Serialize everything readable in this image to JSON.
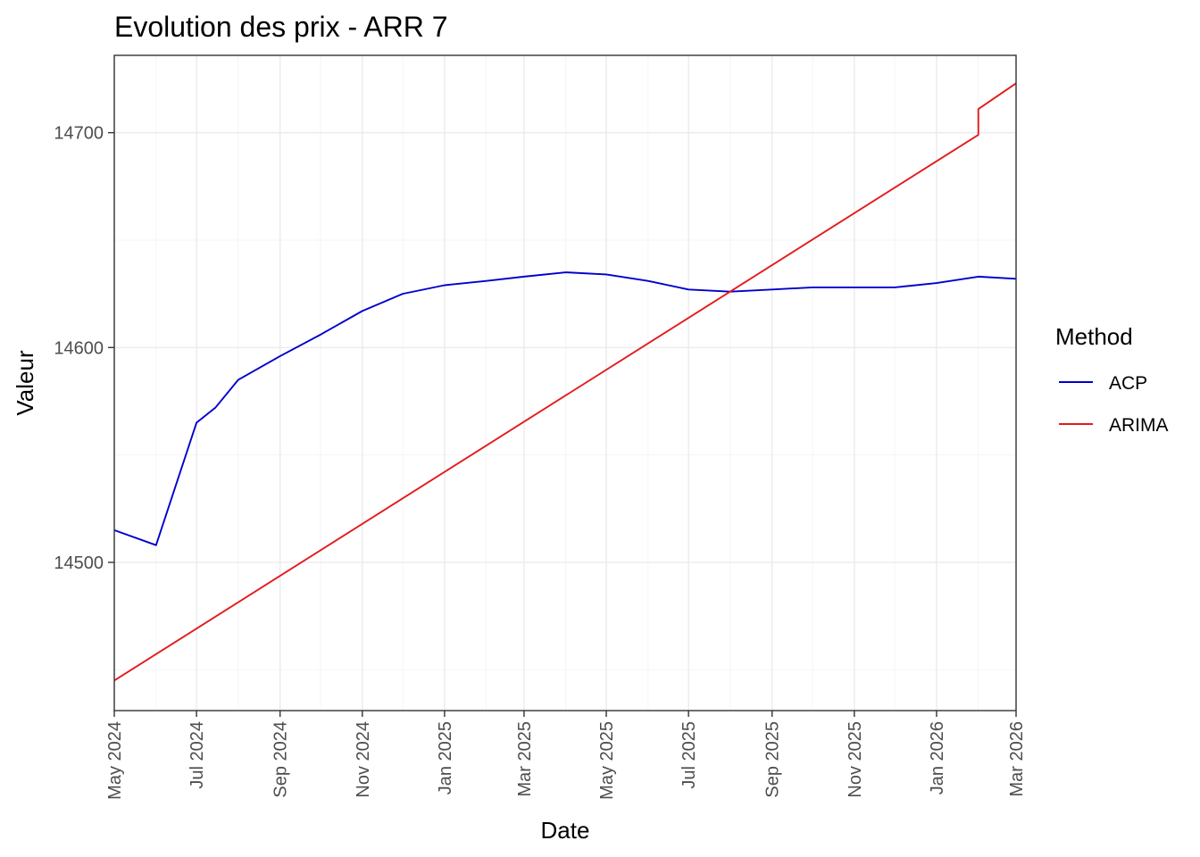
{
  "chart_data": {
    "type": "line",
    "title": "Evolution des prix - ARR 7",
    "xlabel": "Date",
    "ylabel": "Valeur",
    "xlim": [
      "2024-05-01",
      "2026-03-01"
    ],
    "ylim": [
      14431,
      14736
    ],
    "x_ticks": [
      "2024-05-01",
      "2024-07-01",
      "2024-09-01",
      "2024-11-01",
      "2025-01-01",
      "2025-03-01",
      "2025-05-01",
      "2025-07-01",
      "2025-09-01",
      "2025-11-01",
      "2026-01-01",
      "2026-03-01"
    ],
    "x_tick_labels": [
      "May 2024",
      "Jul 2024",
      "Sep 2024",
      "Nov 2024",
      "Jan 2025",
      "Mar 2025",
      "May 2025",
      "Jul 2025",
      "Sep 2025",
      "Nov 2025",
      "Jan 2026",
      "Mar 2026"
    ],
    "y_ticks": [
      14500,
      14600,
      14700
    ],
    "y_tick_labels": [
      "14500",
      "14600",
      "14700"
    ],
    "grid": true,
    "legend_position": "right",
    "legend_title": "Method",
    "series": [
      {
        "name": "ACP",
        "color": "#0000CD",
        "points": [
          [
            "2024-05-01",
            14515
          ],
          [
            "2024-06-01",
            14508
          ],
          [
            "2024-07-01",
            14565
          ],
          [
            "2024-07-15",
            14572
          ],
          [
            "2024-08-01",
            14585
          ],
          [
            "2024-09-01",
            14596
          ],
          [
            "2024-10-01",
            14606
          ],
          [
            "2024-11-01",
            14617
          ],
          [
            "2024-12-01",
            14625
          ],
          [
            "2025-01-01",
            14629
          ],
          [
            "2025-02-01",
            14631
          ],
          [
            "2025-03-01",
            14633
          ],
          [
            "2025-04-01",
            14635
          ],
          [
            "2025-05-01",
            14634
          ],
          [
            "2025-06-01",
            14631
          ],
          [
            "2025-07-01",
            14627
          ],
          [
            "2025-08-01",
            14626
          ],
          [
            "2025-09-01",
            14627
          ],
          [
            "2025-10-01",
            14628
          ],
          [
            "2025-11-01",
            14628
          ],
          [
            "2025-12-01",
            14628
          ],
          [
            "2026-01-01",
            14630
          ],
          [
            "2026-02-01",
            14633
          ],
          [
            "2026-03-01",
            14632
          ]
        ]
      },
      {
        "name": "ARIMA",
        "color": "#E31A1C",
        "points": [
          [
            "2024-05-01",
            14445
          ],
          [
            "2026-02-01",
            14699
          ],
          [
            "2026-02-01",
            14711
          ],
          [
            "2026-03-01",
            14723
          ]
        ]
      }
    ]
  }
}
